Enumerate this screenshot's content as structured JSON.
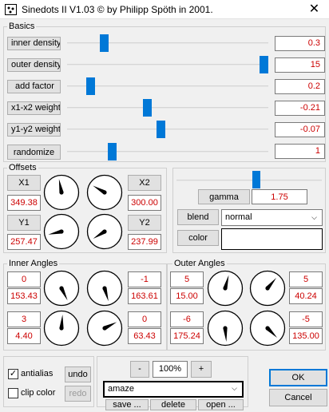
{
  "window": {
    "title": "Sinedots II V1.03 © by Philipp Spöth in 2001.",
    "close_glyph": "✕"
  },
  "basics": {
    "group_label": "Basics",
    "rows": [
      {
        "label": "inner density",
        "value": "0.3",
        "slider_fraction": 0.17
      },
      {
        "label": "outer density",
        "value": "15",
        "slider_fraction": 1.0
      },
      {
        "label": "add factor",
        "value": "0.2",
        "slider_fraction": 0.1
      },
      {
        "label": "x1-x2 weight",
        "value": "-0.21",
        "slider_fraction": 0.395
      },
      {
        "label": "y1-y2 weight",
        "value": "-0.07",
        "slider_fraction": 0.465
      },
      {
        "label": "randomize",
        "value": "1",
        "slider_fraction": 0.21
      }
    ]
  },
  "offsets": {
    "group_label": "Offsets",
    "x1": {
      "label": "X1",
      "value": "349.38",
      "angle_deg": 349.38
    },
    "x2": {
      "label": "X2",
      "value": "300.00",
      "angle_deg": 300.0
    },
    "y1": {
      "label": "Y1",
      "value": "257.47",
      "angle_deg": 257.47
    },
    "y2": {
      "label": "Y2",
      "value": "237.99",
      "angle_deg": 237.99
    }
  },
  "gamma": {
    "label": "gamma",
    "value": "1.75",
    "slider_fraction": 0.55
  },
  "blend": {
    "label": "blend",
    "selected": "normal"
  },
  "color": {
    "label": "color",
    "swatch": "#ffffff"
  },
  "inner_angles": {
    "group_label": "Inner Angles",
    "left": {
      "top": "0",
      "top_angle": "153.43",
      "bottom": "3",
      "bottom_angle": "4.40"
    },
    "right": {
      "top": "-1",
      "top_angle": "163.61",
      "bottom": "0",
      "bottom_angle": "63.43"
    },
    "dial_angles": [
      153.43,
      163.61,
      4.4,
      63.43
    ]
  },
  "outer_angles": {
    "group_label": "Outer Angles",
    "left": {
      "top": "5",
      "top_angle": "15.00",
      "bottom": "-6",
      "bottom_angle": "175.24"
    },
    "right": {
      "top": "5",
      "top_angle": "40.24",
      "bottom": "-5",
      "bottom_angle": "135.00"
    },
    "dial_angles": [
      15.0,
      40.24,
      175.24,
      135.0
    ]
  },
  "options": {
    "antialias_label": "antialias",
    "antialias_checked": true,
    "clip_label": "clip color",
    "clip_checked": false,
    "undo_label": "undo",
    "redo_label": "redo"
  },
  "zoom": {
    "minus": "-",
    "value": "100%",
    "plus": "+"
  },
  "preset": {
    "selected": "amaze",
    "save_label": "save ...",
    "delete_label": "delete",
    "open_label": "open ..."
  },
  "dialog": {
    "ok_label": "OK",
    "cancel_label": "Cancel"
  }
}
